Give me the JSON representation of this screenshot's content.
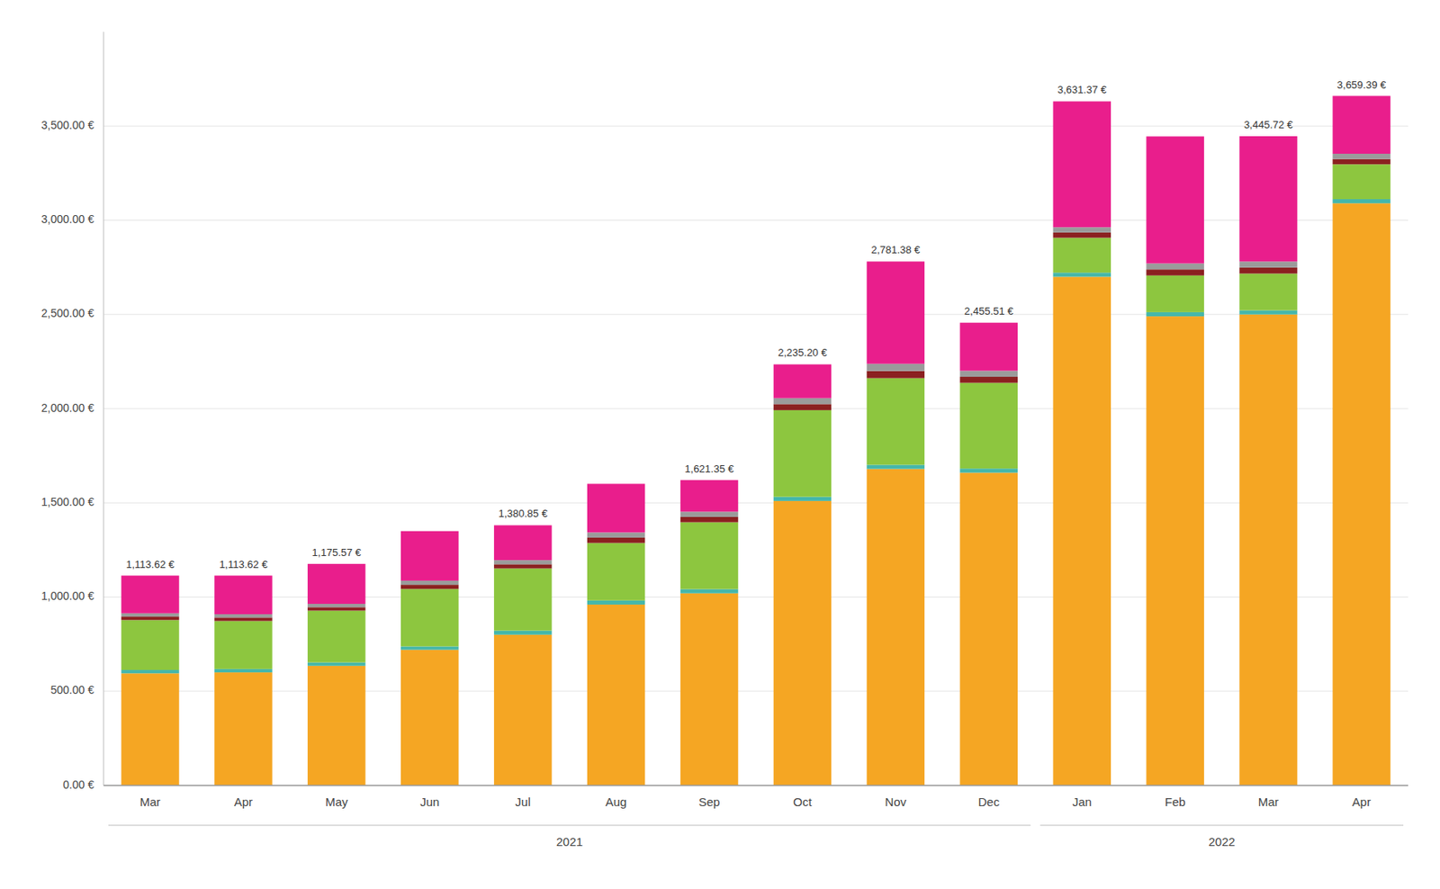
{
  "chart_data": {
    "type": "bar",
    "stacked": true,
    "grid": true,
    "categories": [
      "Mar",
      "Apr",
      "May",
      "Jun",
      "Jul",
      "Aug",
      "Sep",
      "Oct",
      "Nov",
      "Dec",
      "Jan",
      "Feb",
      "Mar",
      "Apr"
    ],
    "series": [
      {
        "color": "#F5A623",
        "values": [
          595,
          600,
          635,
          720,
          800,
          960,
          1020,
          1510,
          1680,
          1660,
          2700,
          2490,
          2500,
          3090
        ]
      },
      {
        "color": "#45B7AA",
        "values": [
          18,
          18,
          18,
          18,
          22,
          22,
          22,
          22,
          22,
          22,
          22,
          22,
          22,
          22
        ]
      },
      {
        "color": "#8DC63F",
        "values": [
          265,
          255,
          275,
          305,
          330,
          305,
          355,
          460,
          460,
          455,
          185,
          195,
          195,
          185
        ]
      },
      {
        "color": "#8B2020",
        "values": [
          18,
          18,
          18,
          22,
          22,
          28,
          28,
          32,
          38,
          32,
          28,
          32,
          32,
          28
        ]
      },
      {
        "color": "#9B9B9B",
        "values": [
          18,
          18,
          18,
          22,
          22,
          28,
          28,
          32,
          38,
          32,
          28,
          32,
          32,
          28
        ]
      },
      {
        "color": "#E91E8C",
        "values": [
          200,
          205,
          212,
          263,
          185,
          258,
          168,
          179,
          543,
          255,
          668,
          674,
          665,
          307
        ]
      }
    ],
    "annotations": [
      {
        "category_index": 0,
        "value": 1113.62,
        "label": "1,113.62 €"
      },
      {
        "category_index": 1,
        "value": 1113.62,
        "label": "1,113.62 €"
      },
      {
        "category_index": 2,
        "value": 1175.57,
        "label": "1,175.57 €"
      },
      {
        "category_index": 4,
        "value": 1380.85,
        "label": "1,380.85 €"
      },
      {
        "category_index": 6,
        "value": 1621.35,
        "label": "1,621.35 €"
      },
      {
        "category_index": 7,
        "value": 2235.2,
        "label": "2,235.20 €"
      },
      {
        "category_index": 8,
        "value": 2781.38,
        "label": "2,781.38 €"
      },
      {
        "category_index": 9,
        "value": 2455.51,
        "label": "2,455.51 €"
      },
      {
        "category_index": 10,
        "value": 3631.37,
        "label": "3,631.37 €"
      },
      {
        "category_index": 12,
        "value": 3445.72,
        "label": "3,445.72 €"
      },
      {
        "category_index": 13,
        "value": 3659.39,
        "label": "3,659.39 €"
      }
    ],
    "category_groups": [
      {
        "label": "2021",
        "first": 0,
        "last": 9
      },
      {
        "label": "2022",
        "first": 10,
        "last": 13
      }
    ],
    "ylim": [
      0,
      4000
    ],
    "yticks": [
      {
        "value": 0,
        "label": "0.00 €"
      },
      {
        "value": 500,
        "label": "500.00 €"
      },
      {
        "value": 1000,
        "label": "1,000.00 €"
      },
      {
        "value": 1500,
        "label": "1,500.00 €"
      },
      {
        "value": 2000,
        "label": "2,000.00 €"
      },
      {
        "value": 2500,
        "label": "2,500.00 €"
      },
      {
        "value": 3000,
        "label": "3,000.00 €"
      },
      {
        "value": 3500,
        "label": "3,500.00 €"
      }
    ]
  }
}
